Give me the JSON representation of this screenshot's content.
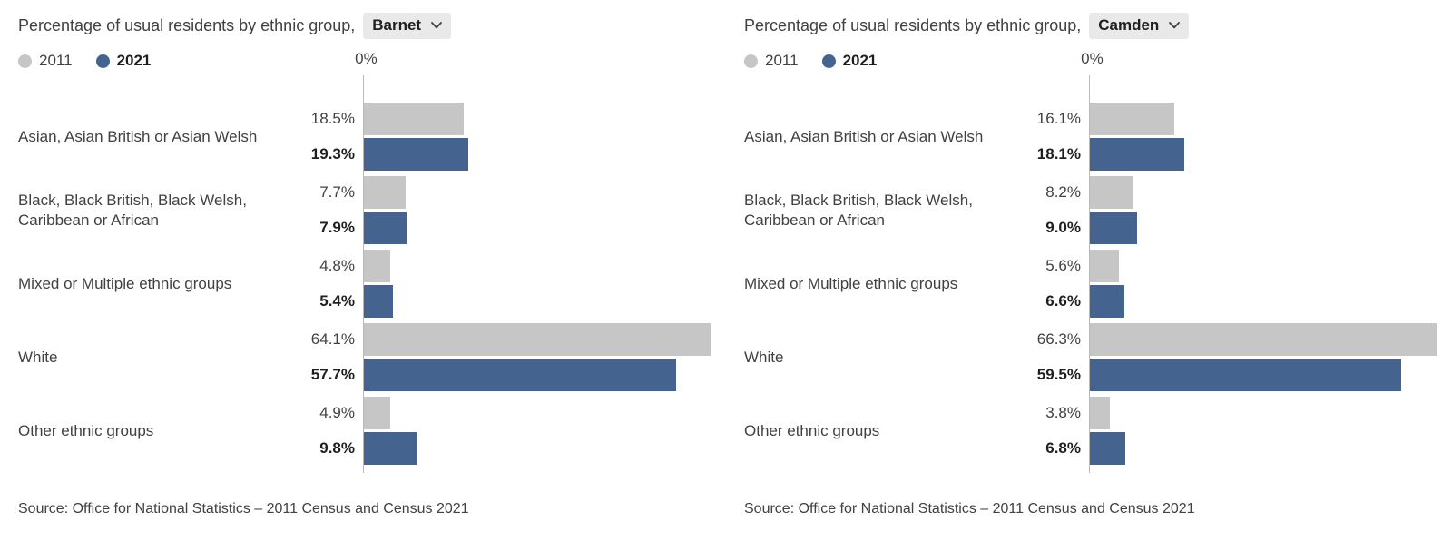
{
  "ui": {
    "title_prefix": "Percentage of usual residents by ethnic group,",
    "legend": [
      "2011",
      "2021"
    ],
    "axis_zero_label": "0%",
    "source": "Source: Office for National Statistics – 2011 Census and Census 2021"
  },
  "colors": {
    "bar_2011": "#c6c6c6",
    "bar_2021": "#44648f",
    "axis": "#b9b9b9",
    "dropdown_bg": "#e9e9e9",
    "text": "#414042"
  },
  "chart_data": [
    {
      "type": "bar",
      "orientation": "horizontal",
      "title": "Percentage of usual residents by ethnic group, Barnet",
      "area": "Barnet",
      "categories": [
        "Asian, Asian British or Asian Welsh",
        "Black, Black British, Black Welsh, Caribbean or African",
        "Mixed or Multiple ethnic groups",
        "White",
        "Other ethnic groups"
      ],
      "series": [
        {
          "name": "2011",
          "color": "#c6c6c6",
          "values": [
            18.5,
            7.7,
            4.8,
            64.1,
            4.9
          ]
        },
        {
          "name": "2021",
          "color": "#44648f",
          "values": [
            19.3,
            7.9,
            5.4,
            57.7,
            9.8
          ]
        }
      ],
      "value_suffix": "%",
      "xlabel": "",
      "ylabel": "",
      "xlim": [
        0,
        64.1
      ],
      "grid": false,
      "legend_position": "top-left",
      "axis_start_label": "0%"
    },
    {
      "type": "bar",
      "orientation": "horizontal",
      "title": "Percentage of usual residents by ethnic group, Camden",
      "area": "Camden",
      "categories": [
        "Asian, Asian British or Asian Welsh",
        "Black, Black British, Black Welsh, Caribbean or African",
        "Mixed or Multiple ethnic groups",
        "White",
        "Other ethnic groups"
      ],
      "series": [
        {
          "name": "2011",
          "color": "#c6c6c6",
          "values": [
            16.1,
            8.2,
            5.6,
            66.3,
            3.8
          ]
        },
        {
          "name": "2021",
          "color": "#44648f",
          "values": [
            18.1,
            9.0,
            6.6,
            59.5,
            6.8
          ]
        }
      ],
      "value_suffix": "%",
      "xlabel": "",
      "ylabel": "",
      "xlim": [
        0,
        66.3
      ],
      "grid": false,
      "legend_position": "top-left",
      "axis_start_label": "0%"
    }
  ]
}
